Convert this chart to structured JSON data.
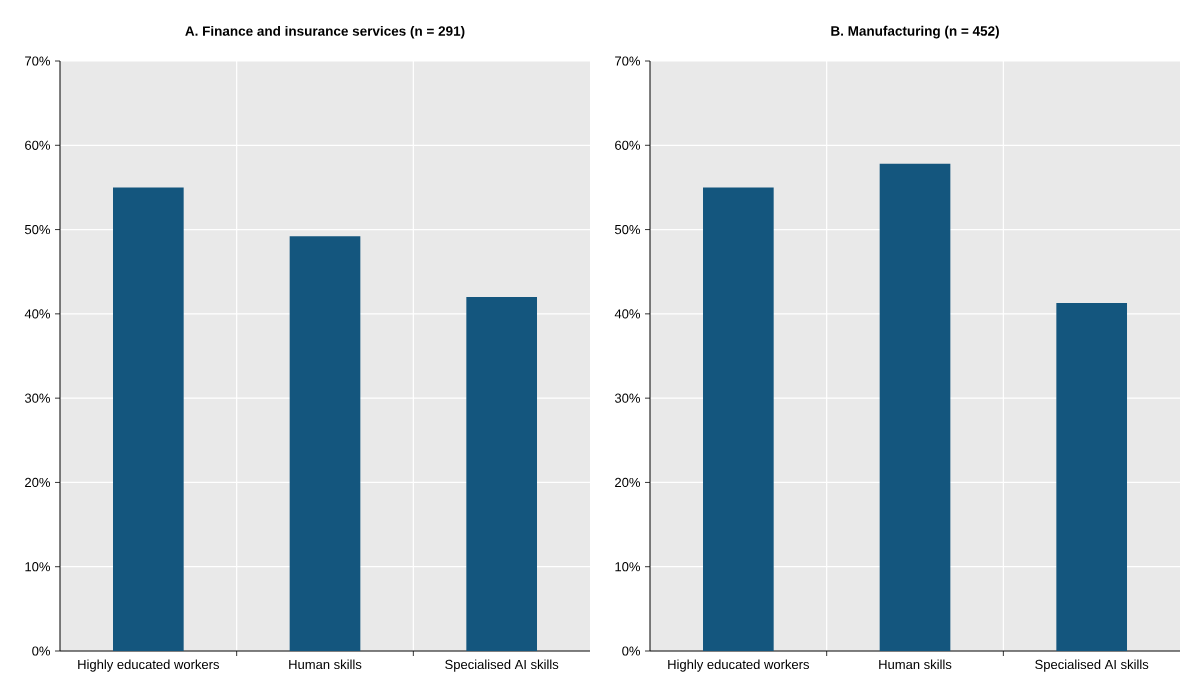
{
  "chart_data": [
    {
      "type": "bar",
      "title": "A. Finance and insurance services (n = 291)",
      "categories": [
        "Highly educated workers",
        "Human skills",
        "Specialised AI skills"
      ],
      "values": [
        55.0,
        49.2,
        42.0
      ],
      "color": "#14567e",
      "ylim": [
        0,
        70
      ],
      "yticks": [
        {
          "value": 0,
          "label": "0%"
        },
        {
          "value": 10,
          "label": "10%"
        },
        {
          "value": 20,
          "label": "20%"
        },
        {
          "value": 30,
          "label": "30%"
        },
        {
          "value": 40,
          "label": "40%"
        },
        {
          "value": 50,
          "label": "50%"
        },
        {
          "value": 60,
          "label": "60%"
        },
        {
          "value": 70,
          "label": "70%"
        }
      ],
      "grid": true
    },
    {
      "type": "bar",
      "title": "B. Manufacturing (n = 452)",
      "categories": [
        "Highly educated workers",
        "Human skills",
        "Specialised AI skills"
      ],
      "values": [
        55.0,
        57.8,
        41.3
      ],
      "color": "#14567e",
      "ylim": [
        0,
        70
      ],
      "yticks": [
        {
          "value": 0,
          "label": "0%"
        },
        {
          "value": 10,
          "label": "10%"
        },
        {
          "value": 20,
          "label": "20%"
        },
        {
          "value": 30,
          "label": "30%"
        },
        {
          "value": 40,
          "label": "40%"
        },
        {
          "value": 50,
          "label": "50%"
        },
        {
          "value": 60,
          "label": "60%"
        },
        {
          "value": 70,
          "label": "70%"
        }
      ],
      "grid": true
    }
  ]
}
